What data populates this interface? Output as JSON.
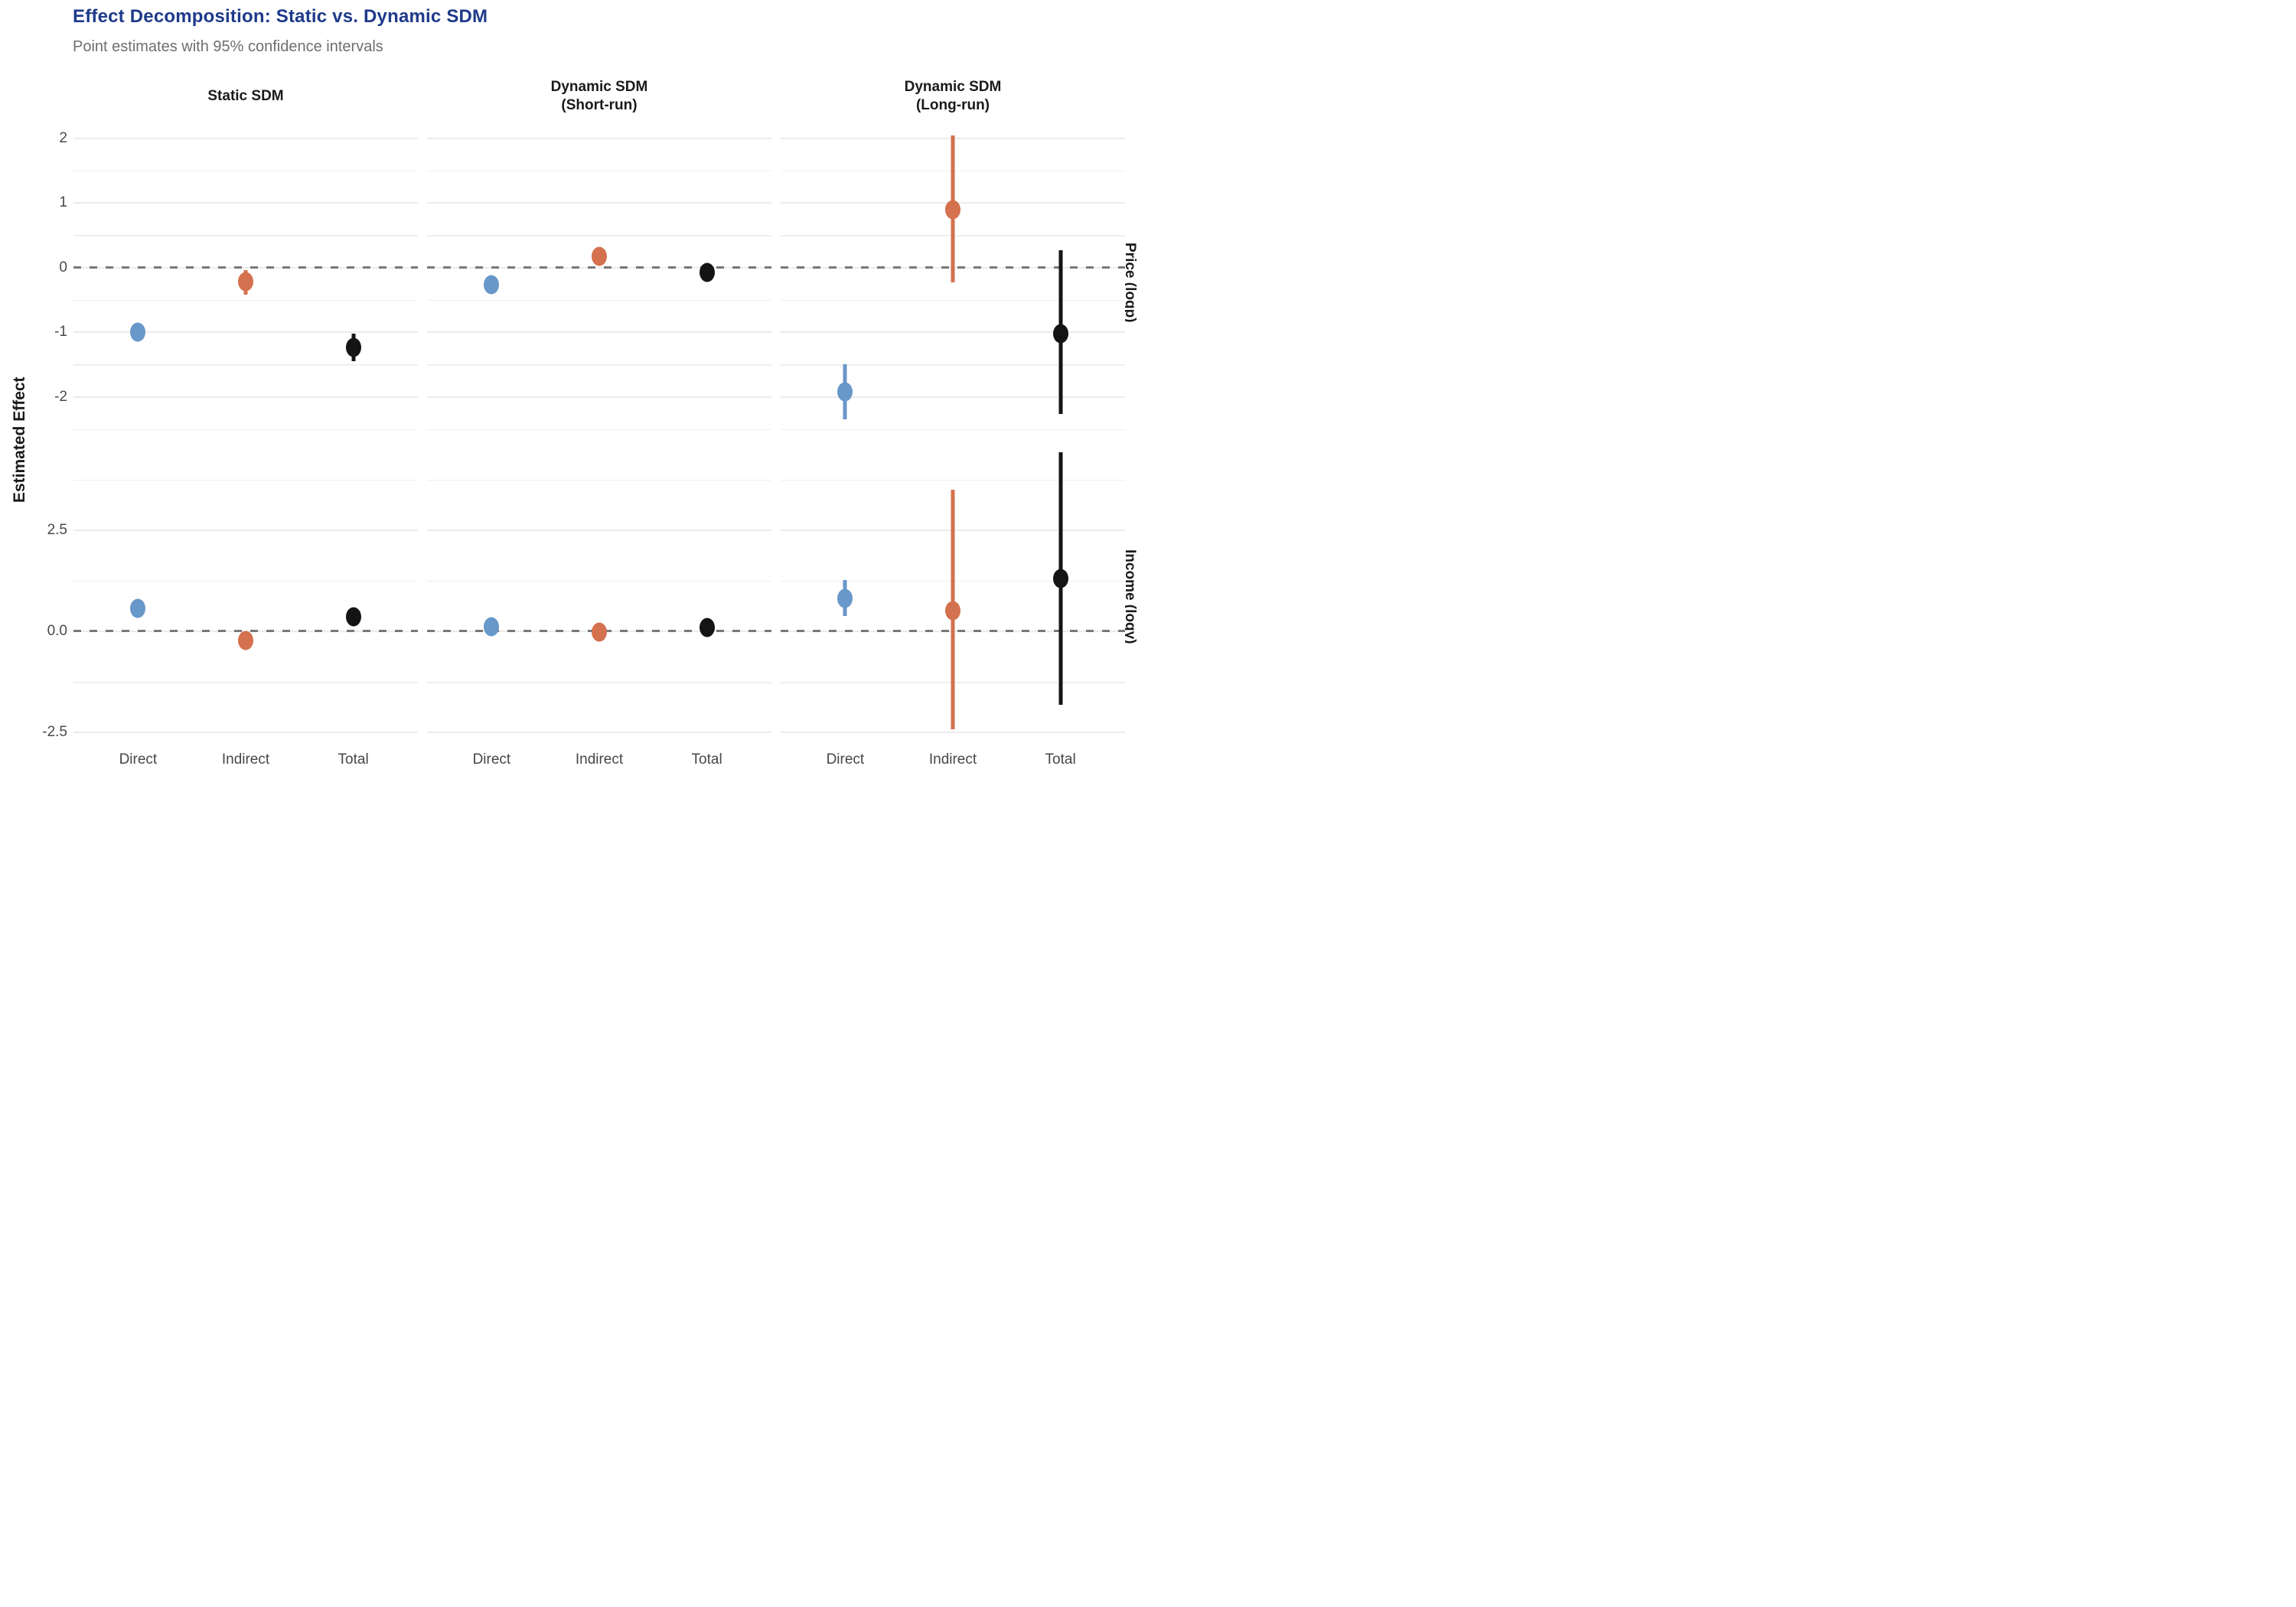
{
  "title": "Effect Decomposition: Static vs. Dynamic SDM",
  "subtitle": "Point estimates with 95% confidence intervals",
  "colors": {
    "title": "#1e3a8a",
    "subtitle_text": "#6e6e6e",
    "direct": "#6897c9",
    "indirect": "#d4714e",
    "total": "#141414",
    "gridline": "#ebebeb",
    "zero_dash": "#787878",
    "tick_label": "#4a4a4a"
  },
  "axis": {
    "y_title": "Estimated Effect",
    "x_categories": [
      "Direct",
      "Indirect",
      "Total"
    ]
  },
  "chart_data": {
    "type": "scatter",
    "subtype": "pointrange-facets",
    "legend": "none",
    "grid": "on",
    "zero_reference_line": "dashed",
    "cols": [
      {
        "lines": [
          "Static SDM"
        ]
      },
      {
        "lines": [
          "Dynamic SDM",
          "(Short-run)"
        ]
      },
      {
        "lines": [
          "Dynamic SDM",
          "(Long-run)"
        ]
      }
    ],
    "rows": [
      {
        "label": "Price (logp)",
        "ylim": [
          -2.55,
          2.08
        ],
        "ticks": [
          {
            "value": 2,
            "label": "2"
          },
          {
            "value": 1,
            "label": "1"
          },
          {
            "value": 0,
            "label": "0"
          },
          {
            "value": -1,
            "label": "-1"
          },
          {
            "value": -2,
            "label": "-2"
          }
        ],
        "minor_gridlines": [
          1.5,
          0.5,
          -0.5,
          -1.5,
          -2.5
        ],
        "zero_line": 0
      },
      {
        "label": "Income (logy)",
        "ylim": [
          -2.95,
          4.65
        ],
        "ticks": [
          {
            "value": 2.5,
            "label": "2.5"
          },
          {
            "value": 0,
            "label": "0.0"
          },
          {
            "value": -2.5,
            "label": "-2.5"
          }
        ],
        "minor_gridlines": [
          3.75,
          1.25,
          -1.25
        ],
        "zero_line": 0
      }
    ],
    "panels": [
      {
        "row": 0,
        "col": 0,
        "points": [
          {
            "category": "Direct",
            "group": "direct",
            "estimate": -1.0,
            "ci_low": -1.08,
            "ci_high": -0.92
          },
          {
            "category": "Indirect",
            "group": "indirect",
            "estimate": -0.22,
            "ci_low": -0.42,
            "ci_high": -0.04
          },
          {
            "category": "Total",
            "group": "total",
            "estimate": -1.23,
            "ci_low": -1.45,
            "ci_high": -1.02
          }
        ]
      },
      {
        "row": 0,
        "col": 1,
        "points": [
          {
            "category": "Direct",
            "group": "direct",
            "estimate": -0.27,
            "ci_low": -0.33,
            "ci_high": -0.21
          },
          {
            "category": "Indirect",
            "group": "indirect",
            "estimate": 0.17,
            "ci_low": 0.11,
            "ci_high": 0.23
          },
          {
            "category": "Total",
            "group": "total",
            "estimate": -0.08,
            "ci_low": -0.14,
            "ci_high": -0.02
          }
        ]
      },
      {
        "row": 0,
        "col": 2,
        "points": [
          {
            "category": "Direct",
            "group": "direct",
            "estimate": -1.92,
            "ci_low": -2.35,
            "ci_high": -1.5
          },
          {
            "category": "Indirect",
            "group": "indirect",
            "estimate": 0.9,
            "ci_low": -0.23,
            "ci_high": 2.04
          },
          {
            "category": "Total",
            "group": "total",
            "estimate": -1.02,
            "ci_low": -2.27,
            "ci_high": 0.27
          }
        ]
      },
      {
        "row": 1,
        "col": 0,
        "points": [
          {
            "category": "Direct",
            "group": "direct",
            "estimate": 0.57,
            "ci_low": 0.47,
            "ci_high": 0.67
          },
          {
            "category": "Indirect",
            "group": "indirect",
            "estimate": -0.23,
            "ci_low": -0.33,
            "ci_high": -0.13
          },
          {
            "category": "Total",
            "group": "total",
            "estimate": 0.36,
            "ci_low": 0.26,
            "ci_high": 0.46
          }
        ]
      },
      {
        "row": 1,
        "col": 1,
        "points": [
          {
            "category": "Direct",
            "group": "direct",
            "estimate": 0.12,
            "ci_low": 0.04,
            "ci_high": 0.2
          },
          {
            "category": "Indirect",
            "group": "indirect",
            "estimate": -0.02,
            "ci_low": -0.1,
            "ci_high": 0.06
          },
          {
            "category": "Total",
            "group": "total",
            "estimate": 0.1,
            "ci_low": 0.02,
            "ci_high": 0.18
          }
        ]
      },
      {
        "row": 1,
        "col": 2,
        "points": [
          {
            "category": "Direct",
            "group": "direct",
            "estimate": 0.82,
            "ci_low": 0.38,
            "ci_high": 1.27
          },
          {
            "category": "Indirect",
            "group": "indirect",
            "estimate": 0.51,
            "ci_low": -2.42,
            "ci_high": 3.5
          },
          {
            "category": "Total",
            "group": "total",
            "estimate": 1.3,
            "ci_low": -1.81,
            "ci_high": 4.42
          }
        ]
      }
    ]
  }
}
